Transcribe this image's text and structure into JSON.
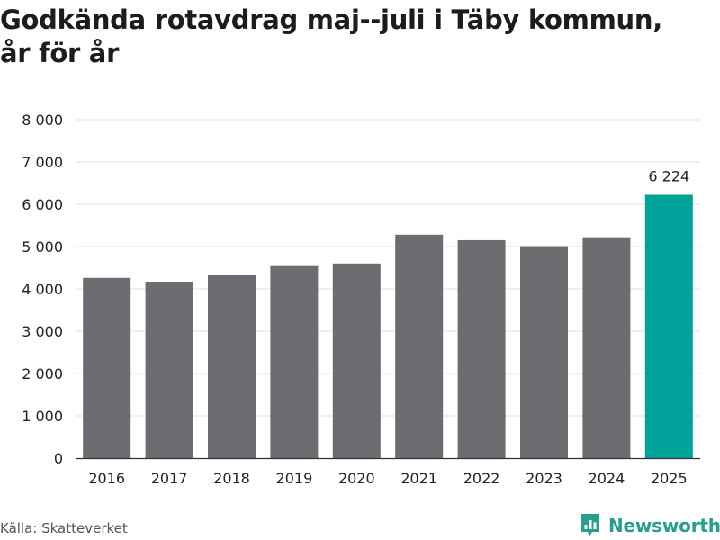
{
  "title_lines": [
    "Godkända rotavdrag maj--juli i Täby kommun,",
    "år för år"
  ],
  "source": "Källa: Skatteverket",
  "brand": "Newsworthy",
  "colors": {
    "bar": "#6d6c71",
    "highlight": "#00a29a",
    "grid": "#e1e1e1",
    "text": "#222222",
    "brand": "#2a9d8f"
  },
  "icons": {
    "brand": "bar-chart-logo-icon"
  },
  "chart_data": {
    "type": "bar",
    "title": "Godkända rotavdrag maj--juli i Täby kommun, år för år",
    "categories": [
      "2016",
      "2017",
      "2018",
      "2019",
      "2020",
      "2021",
      "2022",
      "2023",
      "2024",
      "2025"
    ],
    "values": [
      4260,
      4170,
      4320,
      4560,
      4600,
      5280,
      5150,
      5010,
      5220,
      6224
    ],
    "highlight_index": 9,
    "data_labels": [
      {
        "index": 9,
        "text": "6 224"
      }
    ],
    "yticks": [
      0,
      1000,
      2000,
      3000,
      4000,
      5000,
      6000,
      7000,
      8000
    ],
    "ytick_labels": [
      "0",
      "1 000",
      "2 000",
      "3 000",
      "4 000",
      "5 000",
      "6 000",
      "7 000",
      "8 000"
    ],
    "ylim": [
      0,
      8000
    ],
    "xlabel": "",
    "ylabel": "",
    "grid": true
  }
}
